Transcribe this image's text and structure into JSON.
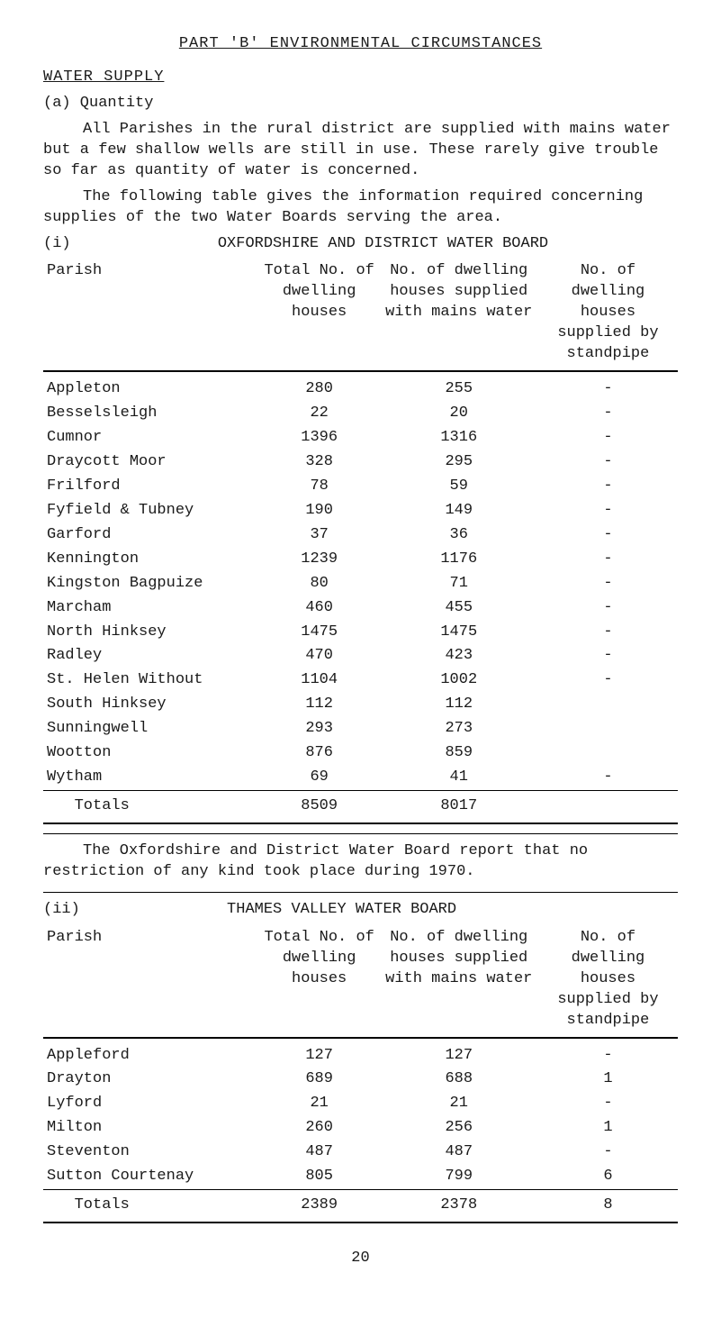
{
  "part_heading": "PART 'B' ENVIRONMENTAL CIRCUMSTANCES",
  "section_heading": "WATER SUPPLY",
  "sub_a": "(a)  Quantity",
  "para1": "All Parishes in the rural district are supplied with mains water but a few shallow wells are still in use.  These rarely give trouble so far as quantity of water is concerned.",
  "para2": "The following table gives the information required concerning supplies of the two Water Boards serving the area.",
  "table1_label": "(i)",
  "table1_title": "OXFORDSHIRE AND DISTRICT WATER BOARD",
  "col_headers": {
    "parish": "Parish",
    "total": "Total No. of dwelling houses",
    "mains": "No. of dwelling houses supplied with mains water",
    "standpipe": "No. of dwelling houses supplied by standpipe"
  },
  "table1_rows": [
    {
      "p": "Appleton",
      "t": "280",
      "m": "255",
      "s": "-"
    },
    {
      "p": "Besselsleigh",
      "t": "22",
      "m": "20",
      "s": "-"
    },
    {
      "p": "Cumnor",
      "t": "1396",
      "m": "1316",
      "s": "-"
    },
    {
      "p": "Draycott Moor",
      "t": "328",
      "m": "295",
      "s": "-"
    },
    {
      "p": "Frilford",
      "t": "78",
      "m": "59",
      "s": "-"
    },
    {
      "p": "Fyfield & Tubney",
      "t": "190",
      "m": "149",
      "s": "-"
    },
    {
      "p": "Garford",
      "t": "37",
      "m": "36",
      "s": "-"
    },
    {
      "p": "Kennington",
      "t": "1239",
      "m": "1176",
      "s": "-"
    },
    {
      "p": "Kingston Bagpuize",
      "t": "80",
      "m": "71",
      "s": "-"
    },
    {
      "p": "Marcham",
      "t": "460",
      "m": "455",
      "s": "-"
    },
    {
      "p": "North Hinksey",
      "t": "1475",
      "m": "1475",
      "s": "-"
    },
    {
      "p": "Radley",
      "t": "470",
      "m": "423",
      "s": "-"
    },
    {
      "p": "St. Helen Without",
      "t": "1104",
      "m": "1002",
      "s": "-"
    },
    {
      "p": "South Hinksey",
      "t": "112",
      "m": "112",
      "s": ""
    },
    {
      "p": "Sunningwell",
      "t": "293",
      "m": "273",
      "s": ""
    },
    {
      "p": "Wootton",
      "t": "876",
      "m": "859",
      "s": ""
    },
    {
      "p": "Wytham",
      "t": "69",
      "m": "41",
      "s": "-"
    }
  ],
  "table1_totals": {
    "label": "Totals",
    "t": "8509",
    "m": "8017",
    "s": ""
  },
  "between_para": "The Oxfordshire and District Water Board report that no restriction of any kind took place during 1970.",
  "table2_label": "(ii)",
  "table2_title": "THAMES VALLEY WATER BOARD",
  "table2_rows": [
    {
      "p": "Appleford",
      "t": "127",
      "m": "127",
      "s": "-"
    },
    {
      "p": "Drayton",
      "t": "689",
      "m": "688",
      "s": "1"
    },
    {
      "p": "Lyford",
      "t": "21",
      "m": "21",
      "s": "-"
    },
    {
      "p": "Milton",
      "t": "260",
      "m": "256",
      "s": "1"
    },
    {
      "p": "Steventon",
      "t": "487",
      "m": "487",
      "s": "-"
    },
    {
      "p": "Sutton Courtenay",
      "t": "805",
      "m": "799",
      "s": "6"
    }
  ],
  "table2_totals": {
    "label": "Totals",
    "t": "2389",
    "m": "2378",
    "s": "8"
  },
  "page_number": "20"
}
